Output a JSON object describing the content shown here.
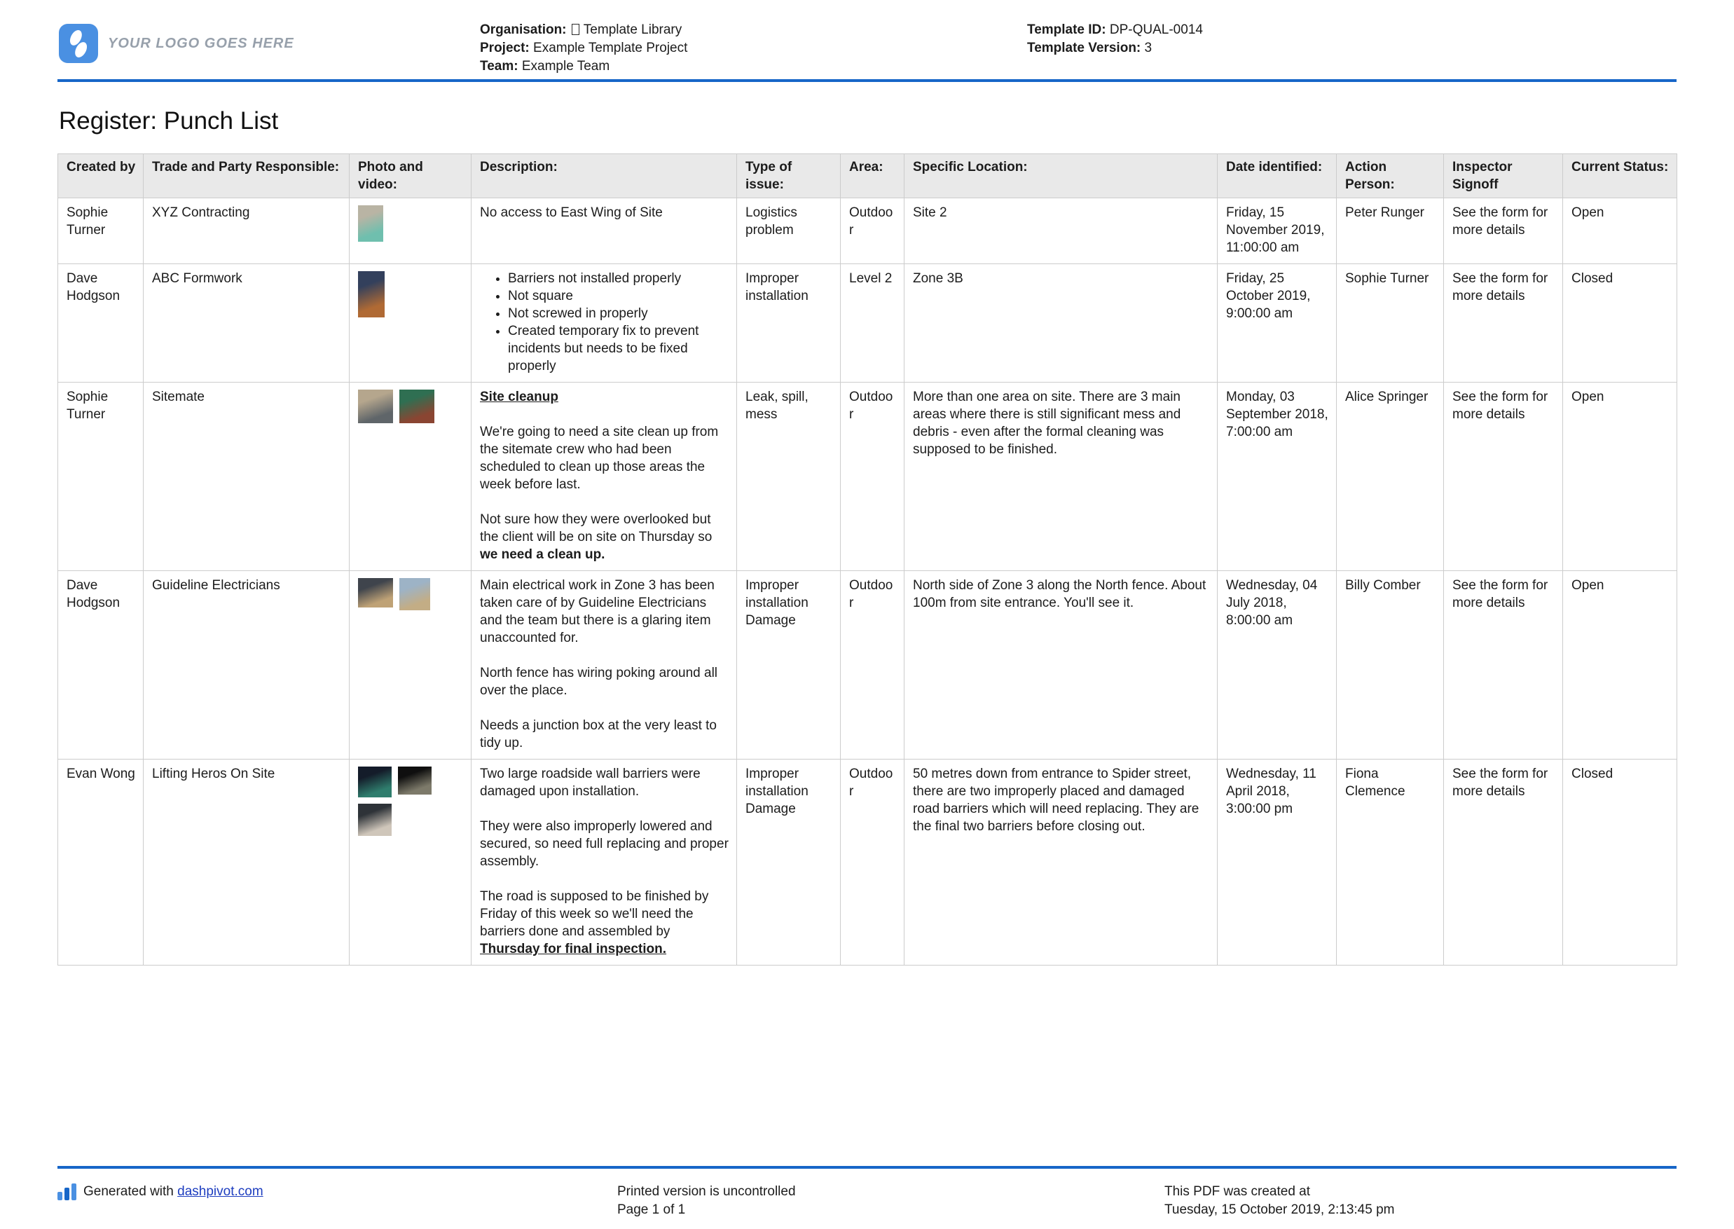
{
  "title": "Register: Punch List",
  "header": {
    "logo_text": "YOUR LOGO GOES HERE",
    "org_label": "Organisation:",
    "org_value": "Template Library",
    "project_label": "Project:",
    "project_value": "Example Template Project",
    "team_label": "Team:",
    "team_value": "Example Team",
    "template_id_label": "Template ID:",
    "template_id_value": "DP-QUAL-0014",
    "template_version_label": "Template Version:",
    "template_version_value": "3"
  },
  "colors": {
    "accent_blue": "#1766c8",
    "logo_blue": "#4a90e2",
    "link_blue": "#1d3dbf",
    "table_header_bg": "#e9e9e9"
  },
  "table": {
    "columns": [
      "Created by",
      "Trade and Party Responsible:",
      "Photo and video:",
      "Description:",
      "Type of issue:",
      "Area:",
      "Specific Location:",
      "Date identified:",
      "Action Person:",
      "Inspector Signoff",
      "Current Status:"
    ],
    "rows": [
      {
        "created_by": "Sophie Turner",
        "trade": "XYZ Contracting",
        "photos": [
          {
            "name": "rubble-pile-photo",
            "w": 36,
            "h": 52,
            "c1": "#b9b4a4",
            "c2": "#6fbfae"
          }
        ],
        "description": [
          {
            "type": "paragraph",
            "runs": [
              {
                "text": "No access to East Wing of Site"
              }
            ]
          }
        ],
        "type_of_issue": "Logistics problem",
        "area": "Outdoor",
        "location": "Site 2",
        "date_identified": "Friday, 15 November 2019, 11:00:00 am",
        "action_person": "Peter Runger",
        "inspector_signoff": "See the form for more details",
        "current_status": "Open"
      },
      {
        "created_by": "Dave Hodgson",
        "trade": "ABC Formwork",
        "photos": [
          {
            "name": "formwork-sky-photo",
            "w": 38,
            "h": 66,
            "c1": "#33405c",
            "c2": "#b06a34"
          }
        ],
        "description": [
          {
            "type": "bullets",
            "items": [
              "Barriers not installed properly",
              "Not square",
              "Not screwed in properly",
              "Created temporary fix to prevent incidents but needs to be fixed properly"
            ]
          }
        ],
        "type_of_issue": "Improper installation",
        "area": "Level 2",
        "location": "Zone 3B",
        "date_identified": "Friday, 25 October 2019, 9:00:00 am",
        "action_person": "Sophie Turner",
        "inspector_signoff": "See the form for more details",
        "current_status": "Closed"
      },
      {
        "created_by": "Sophie Turner",
        "trade": "Sitemate",
        "photos": [
          {
            "name": "pole-debris-photo",
            "w": 50,
            "h": 48,
            "c1": "#b5a68d",
            "c2": "#5f6569"
          },
          {
            "name": "mess-debris-photo",
            "w": 50,
            "h": 48,
            "c1": "#2f6f52",
            "c2": "#8a4532"
          }
        ],
        "description": [
          {
            "type": "paragraph",
            "runs": [
              {
                "text": "Site cleanup",
                "bold": true,
                "underline": true
              }
            ]
          },
          {
            "type": "paragraph",
            "runs": [
              {
                "text": "We're going to need a site clean up from the sitemate crew who had been scheduled to clean up those areas the week before last."
              }
            ]
          },
          {
            "type": "paragraph",
            "runs": [
              {
                "text": "Not sure how they were overlooked but the client will be on site on Thursday so "
              },
              {
                "text": "we need a clean up.",
                "bold": true
              }
            ]
          }
        ],
        "type_of_issue": "Leak, spill, mess",
        "area": "Outdoor",
        "location": "More than one area on site. There are 3 main areas where there is still significant mess and debris - even after the formal cleaning was supposed to be finished.",
        "date_identified": "Monday, 03 September 2018, 7:00:00 am",
        "action_person": "Alice Springer",
        "inspector_signoff": "See the form for more details",
        "current_status": "Open"
      },
      {
        "created_by": "Dave Hodgson",
        "trade": "Guideline Electricians",
        "photos": [
          {
            "name": "fence-wiring-photo",
            "w": 50,
            "h": 42,
            "c1": "#3f444c",
            "c2": "#bfa276"
          },
          {
            "name": "junction-area-photo",
            "w": 44,
            "h": 46,
            "c1": "#9db3c6",
            "c2": "#c3ad85"
          }
        ],
        "description": [
          {
            "type": "paragraph",
            "runs": [
              {
                "text": "Main electrical work in Zone 3 has been taken care of by Guideline Electricians and the team but there is a glaring item unaccounted for."
              }
            ]
          },
          {
            "type": "paragraph",
            "runs": [
              {
                "text": "North fence has wiring poking around all over the place."
              }
            ]
          },
          {
            "type": "paragraph",
            "runs": [
              {
                "text": "Needs a junction box at the very least to tidy up."
              }
            ]
          }
        ],
        "type_of_issue": "Improper installation\nDamage",
        "area": "Outdoor",
        "location": "North side of Zone 3 along the North fence. About 100m from site entrance. You'll see it.",
        "date_identified": "Wednesday, 04 July 2018, 8:00:00 am",
        "action_person": "Billy Comber",
        "inspector_signoff": "See the form for more details",
        "current_status": "Open"
      },
      {
        "created_by": "Evan Wong",
        "trade": "Lifting Heros On Site",
        "photos": [
          {
            "name": "night-crane-photo",
            "w": 48,
            "h": 44,
            "c1": "#141c2a",
            "c2": "#2f7d6d"
          },
          {
            "name": "barrier-frame-photo",
            "w": 48,
            "h": 40,
            "c1": "#0f0f0f",
            "c2": "#7d7a6a"
          },
          {
            "name": "lowered-barrier-photo",
            "w": 48,
            "h": 46,
            "c1": "#2e3338",
            "c2": "#cfc6ba"
          }
        ],
        "description": [
          {
            "type": "paragraph",
            "runs": [
              {
                "text": "Two large roadside wall barriers were damaged upon installation."
              }
            ]
          },
          {
            "type": "paragraph",
            "runs": [
              {
                "text": "They were also improperly lowered and secured, so need full replacing and proper assembly."
              }
            ]
          },
          {
            "type": "paragraph",
            "runs": [
              {
                "text": "The road is supposed to be finished by Friday of this week so we'll need the barriers done and assembled by "
              },
              {
                "text": "Thursday for final inspection.",
                "bold": true,
                "underline": true
              }
            ]
          }
        ],
        "type_of_issue": "Improper installation\nDamage",
        "area": "Outdoor",
        "location": "50 metres down from entrance to Spider street, there are two improperly placed and damaged road barriers which will need replacing. They are the final two barriers before closing out.",
        "date_identified": "Wednesday, 11 April 2018, 3:00:00 pm",
        "action_person": "Fiona Clemence",
        "inspector_signoff": "See the form for more details",
        "current_status": "Closed"
      }
    ]
  },
  "footer": {
    "generated_prefix": "Generated with",
    "link_text": "dashpivot.com",
    "uncontrolled_note": "Printed version is uncontrolled",
    "page_number": "Page 1 of 1",
    "created_at_label": "This PDF was created at",
    "created_at_value": "Tuesday, 15 October 2019, 2:13:45 pm"
  }
}
